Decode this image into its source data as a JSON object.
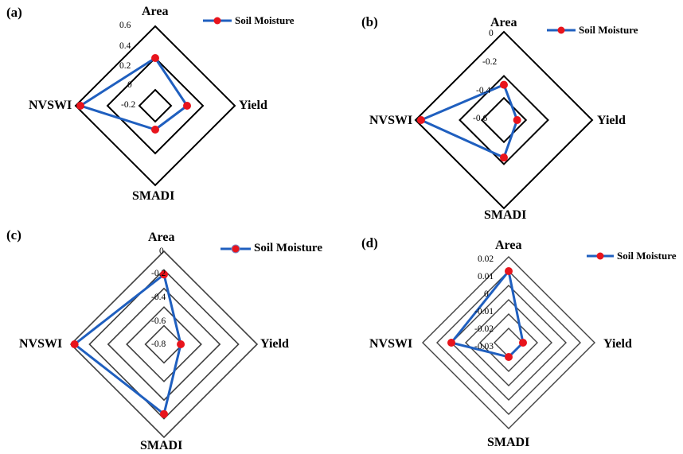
{
  "colors": {
    "series_line": "#1f5fbf",
    "marker": "#e8141c",
    "grid_a": "#000000",
    "grid_c": "#404040"
  },
  "chart_data": [
    {
      "panel": "(a)",
      "type": "radar",
      "axes": [
        "Area",
        "Yield",
        "SMADI",
        "NVSWI"
      ],
      "rticks": [
        "0.6",
        "0.4",
        "0.2",
        "0",
        "-0.2"
      ],
      "rlim": [
        -0.4,
        0.6
      ],
      "grid_levels": [
        0.6,
        0.2,
        -0.2
      ],
      "legend": {
        "label": "Soil Moisture",
        "position": "top-right"
      },
      "series": [
        {
          "name": "Soil Moisture",
          "values": [
            0.2,
            0.0,
            -0.1,
            0.54
          ]
        }
      ]
    },
    {
      "panel": "(b)",
      "type": "radar",
      "axes": [
        "Area",
        "Yield",
        "SMADI",
        "NVSWI"
      ],
      "rticks": [
        "0",
        "-0.2",
        "-0.4",
        "-0.6"
      ],
      "rlim": [
        -0.8,
        0
      ],
      "grid_levels": [
        0,
        -0.4,
        -0.6
      ],
      "legend": {
        "label": "Soil Moisture",
        "position": "top-right"
      },
      "series": [
        {
          "name": "Soil Moisture",
          "values": [
            -0.48,
            -0.68,
            -0.46,
            -0.05
          ]
        }
      ]
    },
    {
      "panel": "(c)",
      "type": "radar",
      "axes": [
        "Area",
        "Yield",
        "SMADI",
        "NVSWI"
      ],
      "rticks": [
        "0",
        "-0.2",
        "-0.4",
        "-0.6",
        "-0.8"
      ],
      "rlim": [
        -1,
        0
      ],
      "grid_levels": [
        0,
        -0.2,
        -0.4,
        -0.6,
        -0.8
      ],
      "legend": {
        "label": "Soil Moisture",
        "position": "top-right"
      },
      "series": [
        {
          "name": "Soil Moisture",
          "values": [
            -0.25,
            -0.82,
            -0.25,
            -0.04
          ]
        }
      ]
    },
    {
      "panel": "(d)",
      "type": "radar",
      "axes": [
        "Area",
        "Yield",
        "SMADI",
        "NVSWI"
      ],
      "rticks": [
        "0.02",
        "0.01",
        "0",
        "-0.01",
        "-0.02",
        "-0.03"
      ],
      "rlim": [
        -0.04,
        0.02
      ],
      "grid_levels": [
        0.02,
        0.01,
        0,
        -0.01,
        -0.02,
        -0.03
      ],
      "legend": {
        "label": "Soil Moisture",
        "position": "top-right"
      },
      "series": [
        {
          "name": "Soil Moisture",
          "values": [
            0.01,
            -0.03,
            -0.03,
            0.0
          ]
        }
      ]
    }
  ]
}
